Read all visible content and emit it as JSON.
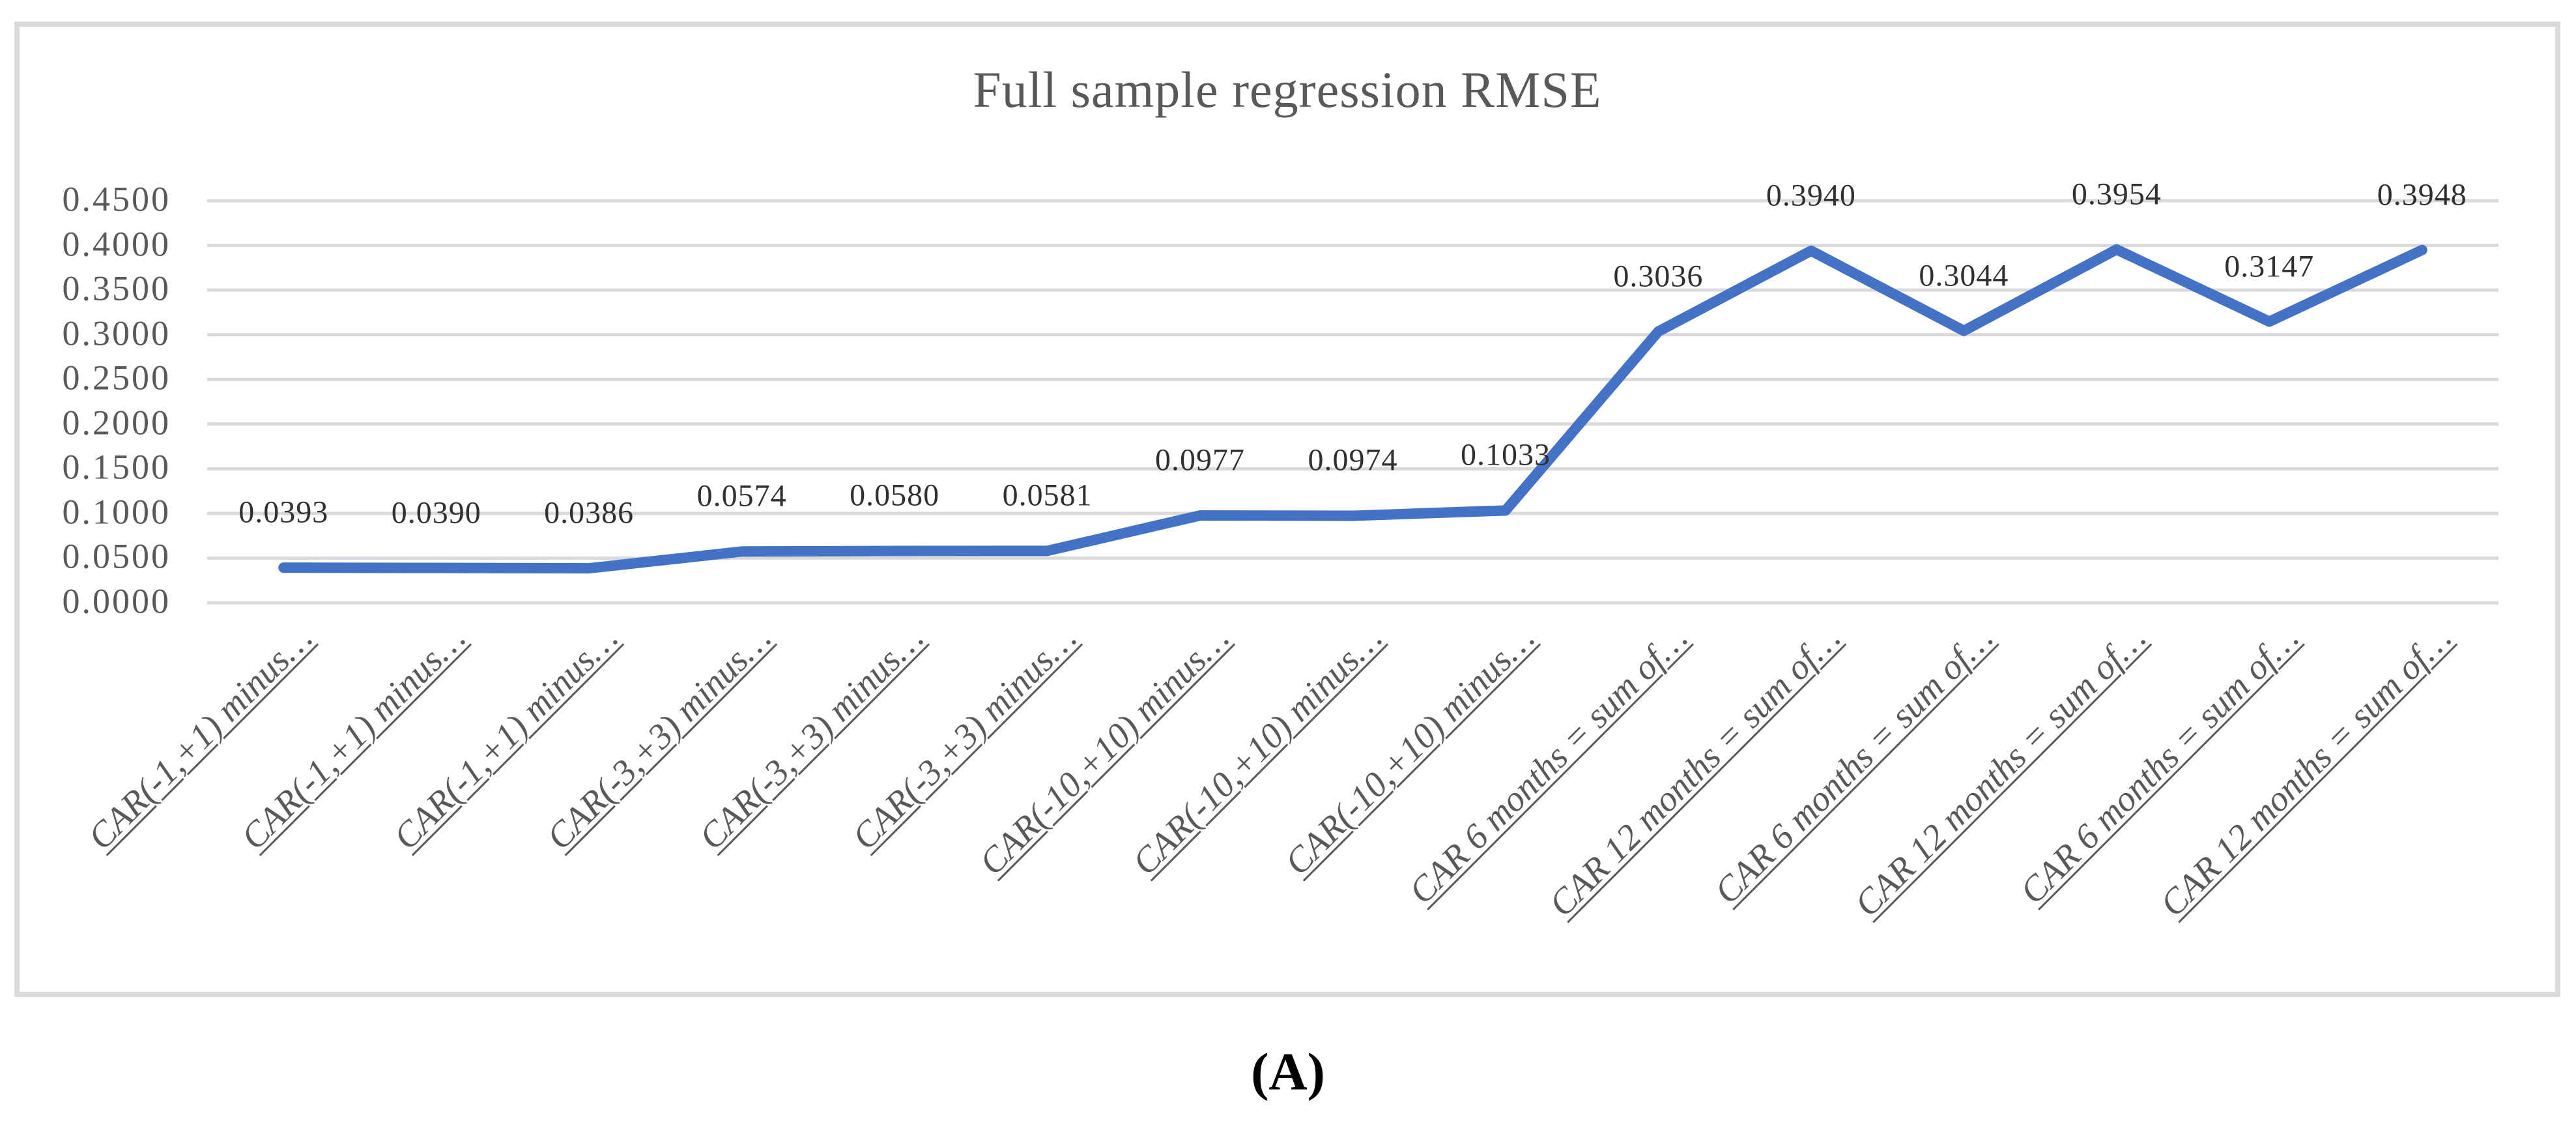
{
  "figure": {
    "panel_label": "(A)"
  },
  "chart_data": {
    "type": "line",
    "title": "Full sample regression RMSE",
    "categories": [
      "CAR(-1,+1) minus…",
      "CAR(-1,+1) minus…",
      "CAR(-1,+1) minus…",
      "CAR(-3,+3) minus…",
      "CAR(-3,+3) minus…",
      "CAR(-3,+3) minus…",
      "CAR(-10,+10) minus…",
      "CAR(-10,+10) minus…",
      "CAR(-10,+10) minus…",
      "CAR 6 months = sum of…",
      "CAR 12 months = sum of…",
      "CAR 6 months = sum of…",
      "CAR 12 months = sum of…",
      "CAR 6 months = sum of…",
      "CAR 12 months = sum of…"
    ],
    "values": [
      0.0393,
      0.039,
      0.0386,
      0.0574,
      0.058,
      0.0581,
      0.0977,
      0.0974,
      0.1033,
      0.3036,
      0.394,
      0.3044,
      0.3954,
      0.3147,
      0.3948
    ],
    "data_labels": [
      "0.0393",
      "0.0390",
      "0.0386",
      "0.0574",
      "0.0580",
      "0.0581",
      "0.0977",
      "0.0974",
      "0.1033",
      "0.3036",
      "0.3940",
      "0.3044",
      "0.3954",
      "0.3147",
      "0.3948"
    ],
    "xlabel": "",
    "ylabel": "",
    "ylim": [
      0,
      0.45
    ],
    "y_ticks": [
      "0.0000",
      "0.0500",
      "0.1000",
      "0.1500",
      "0.2000",
      "0.2500",
      "0.3000",
      "0.3500",
      "0.4000",
      "0.4500"
    ],
    "grid": "horizontal",
    "legend": "none",
    "series_color": "#4472C4",
    "gridline_color": "#D9D9D9",
    "axis_text_color": "#595959",
    "data_label_color": "#303030",
    "chart_border_color": "#DBDBDB"
  }
}
